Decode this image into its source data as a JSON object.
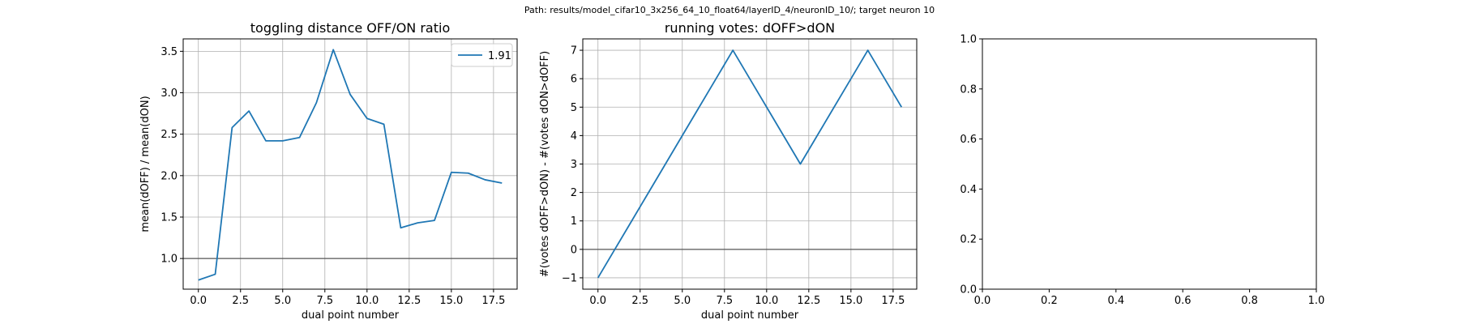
{
  "figure": {
    "supertitle": "Path: results/model_cifar10_3x256_64_10_float64/layerID_4/neuronID_10/; target neuron 10"
  },
  "chart_data": [
    {
      "type": "line",
      "title": "toggling distance OFF/ON ratio",
      "xlabel": "dual point number",
      "ylabel": "mean(dOFF) / mean(dON)",
      "xlim": [
        -0.9,
        18.9
      ],
      "ylim": [
        0.63,
        3.65
      ],
      "xticks": [
        0.0,
        2.5,
        5.0,
        7.5,
        10.0,
        12.5,
        15.0,
        17.5
      ],
      "xtick_labels": [
        "0.0",
        "2.5",
        "5.0",
        "7.5",
        "10.0",
        "12.5",
        "15.0",
        "17.5"
      ],
      "yticks": [
        1.0,
        1.5,
        2.0,
        2.5,
        3.0,
        3.5
      ],
      "ytick_labels": [
        "1.0",
        "1.5",
        "2.0",
        "2.5",
        "3.0",
        "3.5"
      ],
      "grid": true,
      "hline": 1.0,
      "legend": {
        "position": "top-right",
        "entries": [
          "1.91"
        ]
      },
      "series": [
        {
          "name": "1.91",
          "color": "#1f77b4",
          "x": [
            0,
            1,
            2,
            3,
            4,
            5,
            6,
            7,
            8,
            9,
            10,
            11,
            12,
            13,
            14,
            15,
            16,
            17,
            18
          ],
          "y": [
            0.74,
            0.81,
            2.58,
            2.78,
            2.42,
            2.42,
            2.46,
            2.88,
            3.52,
            2.98,
            2.69,
            2.62,
            1.37,
            1.43,
            1.46,
            2.04,
            2.03,
            1.95,
            1.91
          ]
        }
      ]
    },
    {
      "type": "line",
      "title": "running votes: dOFF>dON",
      "xlabel": "dual point number",
      "ylabel": "#(votes dOFF>dON) - #(votes dON>dOFF)",
      "xlim": [
        -0.9,
        18.9
      ],
      "ylim": [
        -1.4,
        7.4
      ],
      "xticks": [
        0.0,
        2.5,
        5.0,
        7.5,
        10.0,
        12.5,
        15.0,
        17.5
      ],
      "xtick_labels": [
        "0.0",
        "2.5",
        "5.0",
        "7.5",
        "10.0",
        "12.5",
        "15.0",
        "17.5"
      ],
      "yticks": [
        -1,
        0,
        1,
        2,
        3,
        4,
        5,
        6,
        7
      ],
      "ytick_labels": [
        "−1",
        "0",
        "1",
        "2",
        "3",
        "4",
        "5",
        "6",
        "7"
      ],
      "grid": true,
      "hline": 0,
      "series": [
        {
          "color": "#1f77b4",
          "x": [
            0,
            1,
            2,
            3,
            4,
            5,
            6,
            7,
            8,
            9,
            10,
            11,
            12,
            13,
            14,
            15,
            16,
            17,
            18
          ],
          "y": [
            -1,
            0,
            1,
            2,
            3,
            4,
            5,
            6,
            7,
            6,
            5,
            4,
            3,
            4,
            5,
            6,
            7,
            6,
            5
          ]
        }
      ]
    },
    {
      "type": "line",
      "title": "",
      "xlabel": "",
      "ylabel": "",
      "xlim": [
        0,
        1
      ],
      "ylim": [
        0,
        1
      ],
      "xticks": [
        0.0,
        0.2,
        0.4,
        0.6,
        0.8,
        1.0
      ],
      "xtick_labels": [
        "0.0",
        "0.2",
        "0.4",
        "0.6",
        "0.8",
        "1.0"
      ],
      "yticks": [
        0.0,
        0.2,
        0.4,
        0.6,
        0.8,
        1.0
      ],
      "ytick_labels": [
        "0.0",
        "0.2",
        "0.4",
        "0.6",
        "0.8",
        "1.0"
      ],
      "grid": false,
      "series": []
    }
  ]
}
